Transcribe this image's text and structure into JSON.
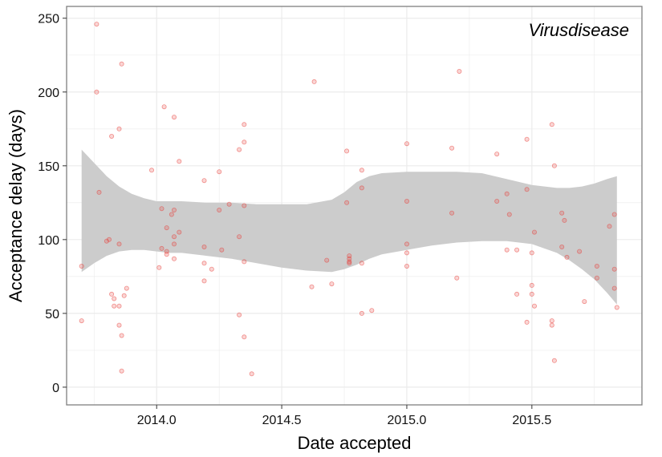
{
  "chart_data": {
    "type": "scatter",
    "title": "",
    "xlabel": "Date accepted",
    "ylabel": "Acceptance delay (days)",
    "annotation": "Virusdisease",
    "xlim": [
      2013.64,
      2015.94
    ],
    "ylim": [
      -12,
      258
    ],
    "x_ticks": [
      2014.0,
      2014.5,
      2015.0,
      2015.5
    ],
    "x_tick_labels": [
      "2014.0",
      "2014.5",
      "2015.0",
      "2015.5"
    ],
    "y_ticks": [
      0,
      50,
      100,
      150,
      200,
      250
    ],
    "y_tick_labels": [
      "0",
      "50",
      "100",
      "150",
      "200",
      "250"
    ],
    "grid": true,
    "colors": {
      "points": "#e8403a",
      "band": "#cccccc",
      "panel_border": "#7f7f7f",
      "grid": "#ebebeb"
    },
    "points": [
      [
        2013.7,
        82
      ],
      [
        2013.7,
        45
      ],
      [
        2013.76,
        246
      ],
      [
        2013.76,
        200
      ],
      [
        2013.77,
        132
      ],
      [
        2013.8,
        99
      ],
      [
        2013.81,
        100
      ],
      [
        2013.82,
        63
      ],
      [
        2013.82,
        170
      ],
      [
        2013.83,
        55
      ],
      [
        2013.83,
        60
      ],
      [
        2013.85,
        175
      ],
      [
        2013.85,
        97
      ],
      [
        2013.85,
        55
      ],
      [
        2013.86,
        219
      ],
      [
        2013.85,
        42
      ],
      [
        2013.86,
        35
      ],
      [
        2013.86,
        11
      ],
      [
        2013.87,
        62
      ],
      [
        2013.88,
        67
      ],
      [
        2013.98,
        147
      ],
      [
        2014.01,
        81
      ],
      [
        2014.02,
        94
      ],
      [
        2014.02,
        121
      ],
      [
        2014.03,
        190
      ],
      [
        2014.04,
        108
      ],
      [
        2014.04,
        92
      ],
      [
        2014.04,
        90
      ],
      [
        2014.06,
        117
      ],
      [
        2014.07,
        183
      ],
      [
        2014.07,
        120
      ],
      [
        2014.07,
        102
      ],
      [
        2014.07,
        97
      ],
      [
        2014.07,
        87
      ],
      [
        2014.09,
        153
      ],
      [
        2014.09,
        105
      ],
      [
        2014.19,
        140
      ],
      [
        2014.19,
        95
      ],
      [
        2014.19,
        84
      ],
      [
        2014.19,
        72
      ],
      [
        2014.22,
        80
      ],
      [
        2014.25,
        146
      ],
      [
        2014.25,
        120
      ],
      [
        2014.26,
        93
      ],
      [
        2014.29,
        124
      ],
      [
        2014.33,
        161
      ],
      [
        2014.33,
        102
      ],
      [
        2014.33,
        49
      ],
      [
        2014.35,
        178
      ],
      [
        2014.35,
        166
      ],
      [
        2014.35,
        123
      ],
      [
        2014.35,
        85
      ],
      [
        2014.35,
        34
      ],
      [
        2014.38,
        9
      ],
      [
        2014.63,
        207
      ],
      [
        2014.62,
        68
      ],
      [
        2014.68,
        86
      ],
      [
        2014.7,
        70
      ],
      [
        2014.76,
        160
      ],
      [
        2014.76,
        125
      ],
      [
        2014.77,
        89
      ],
      [
        2014.77,
        87
      ],
      [
        2014.77,
        85
      ],
      [
        2014.77,
        84
      ],
      [
        2014.82,
        147
      ],
      [
        2014.82,
        135
      ],
      [
        2014.82,
        84
      ],
      [
        2014.82,
        50
      ],
      [
        2014.86,
        52
      ],
      [
        2015.0,
        165
      ],
      [
        2015.0,
        126
      ],
      [
        2015.0,
        97
      ],
      [
        2015.0,
        91
      ],
      [
        2015.0,
        82
      ],
      [
        2015.18,
        162
      ],
      [
        2015.18,
        118
      ],
      [
        2015.21,
        214
      ],
      [
        2015.2,
        74
      ],
      [
        2015.36,
        158
      ],
      [
        2015.36,
        126
      ],
      [
        2015.4,
        131
      ],
      [
        2015.4,
        93
      ],
      [
        2015.41,
        117
      ],
      [
        2015.44,
        93
      ],
      [
        2015.44,
        63
      ],
      [
        2015.48,
        168
      ],
      [
        2015.48,
        134
      ],
      [
        2015.48,
        44
      ],
      [
        2015.5,
        91
      ],
      [
        2015.5,
        69
      ],
      [
        2015.5,
        63
      ],
      [
        2015.51,
        105
      ],
      [
        2015.51,
        55
      ],
      [
        2015.58,
        178
      ],
      [
        2015.58,
        45
      ],
      [
        2015.58,
        42
      ],
      [
        2015.59,
        150
      ],
      [
        2015.59,
        18
      ],
      [
        2015.62,
        118
      ],
      [
        2015.62,
        95
      ],
      [
        2015.63,
        113
      ],
      [
        2015.64,
        88
      ],
      [
        2015.69,
        92
      ],
      [
        2015.71,
        58
      ],
      [
        2015.76,
        82
      ],
      [
        2015.76,
        74
      ],
      [
        2015.81,
        109
      ],
      [
        2015.83,
        117
      ],
      [
        2015.83,
        80
      ],
      [
        2015.83,
        67
      ],
      [
        2015.84,
        54
      ]
    ],
    "smooth_band": {
      "x": [
        2013.7,
        2013.75,
        2013.8,
        2013.85,
        2013.9,
        2013.95,
        2014.0,
        2014.05,
        2014.1,
        2014.2,
        2014.3,
        2014.4,
        2014.5,
        2014.6,
        2014.7,
        2014.75,
        2014.8,
        2014.85,
        2014.9,
        2015.0,
        2015.1,
        2015.2,
        2015.3,
        2015.4,
        2015.5,
        2015.6,
        2015.65,
        2015.7,
        2015.75,
        2015.8,
        2015.84
      ],
      "upper": [
        161,
        152,
        143,
        136,
        131,
        128,
        126,
        126,
        126,
        125,
        125,
        124,
        124,
        124,
        127,
        132,
        139,
        143,
        145,
        146,
        146,
        146,
        145,
        141,
        137,
        135,
        135,
        136,
        138,
        141,
        143
      ],
      "lower": [
        78,
        84,
        89,
        92,
        93,
        93,
        92,
        91,
        91,
        89,
        87,
        84,
        81,
        79,
        78,
        80,
        83,
        87,
        90,
        93,
        96,
        98,
        99,
        99,
        97,
        91,
        86,
        80,
        73,
        64,
        56
      ]
    }
  }
}
